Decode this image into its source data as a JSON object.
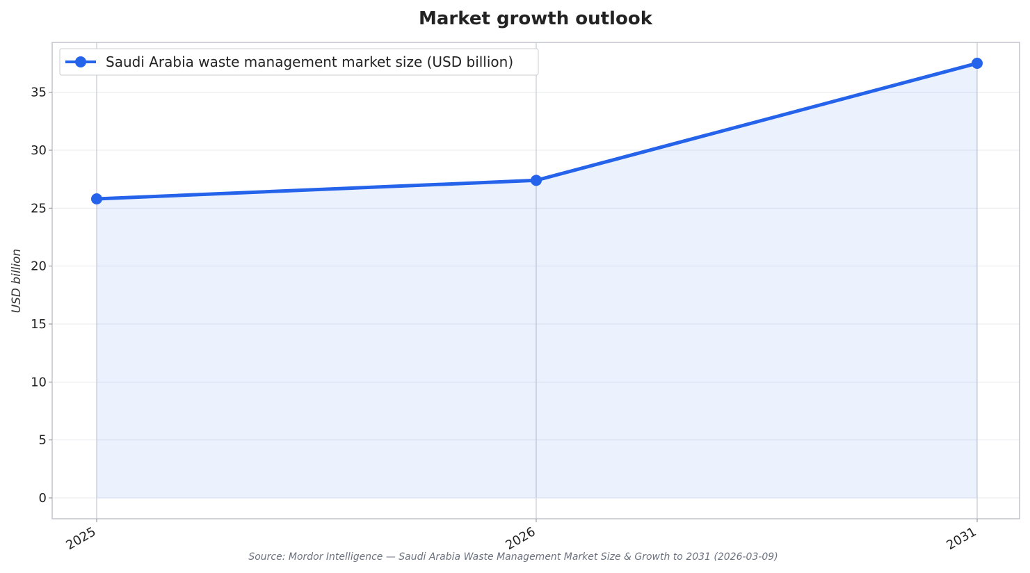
{
  "chart_data": {
    "type": "line",
    "title": "Market growth outlook",
    "xlabel": "",
    "ylabel": "USD billion",
    "categories": [
      "2025",
      "2026",
      "2031"
    ],
    "series": [
      {
        "name": "Saudi Arabia waste management market size (USD billion)",
        "values": [
          25.8,
          27.4,
          37.5
        ],
        "color": "#2563eb"
      }
    ],
    "ylim": [
      -1.8,
      39.3
    ],
    "yticks": [
      0,
      5,
      10,
      15,
      20,
      25,
      30,
      35
    ],
    "grid": true,
    "area_fill": true,
    "legend_position": "upper-left",
    "source": "Source: Mordor Intelligence — Saudi Arabia Waste Management Market Size & Growth to 2031 (2026-03-09)"
  }
}
